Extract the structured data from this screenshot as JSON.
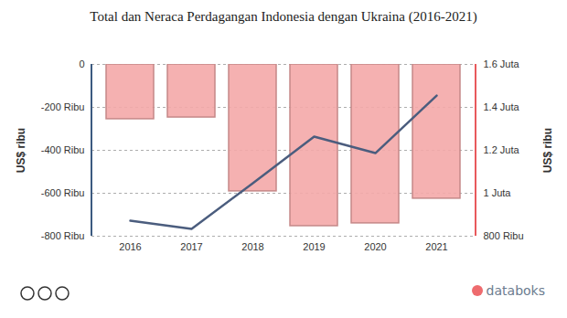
{
  "chart_data": {
    "type": "bar",
    "title": "Total dan Neraca Perdagangan Indonesia dengan Ukraina (2016-2021)",
    "categories": [
      "2016",
      "2017",
      "2018",
      "2019",
      "2020",
      "2021"
    ],
    "series": [
      {
        "type": "bar",
        "color": "#f4a9a8",
        "values": [
          -255,
          -247,
          -591,
          -753,
          -740,
          -625
        ]
      },
      {
        "type": "line",
        "color": "#4b5d7e",
        "axis": "y2",
        "values": [
          872,
          834,
          1047,
          1264,
          1187,
          1455
        ]
      }
    ],
    "ylim": [
      -800,
      0
    ],
    "yticks": [
      {
        "value": -800,
        "label": "-800 Ribu"
      },
      {
        "value": -600,
        "label": "-600 Ribu"
      },
      {
        "value": -400,
        "label": "-400 Ribu"
      },
      {
        "value": -200,
        "label": "-200 Ribu"
      },
      0
    ],
    "y2lim": [
      800,
      1600
    ],
    "y2ticks": [
      {
        "value": 800,
        "label": "800 Ribu"
      },
      {
        "value": 1000,
        "label": "1 Juta"
      },
      {
        "value": 1200,
        "label": "1.2 Juta"
      },
      {
        "value": 1400,
        "label": "1.4 Juta"
      },
      {
        "value": 1600,
        "label": "1.6 Juta"
      }
    ],
    "ylabel": "US$ ribu",
    "y2label": "US$ ribu",
    "grid": true,
    "credit": "databoks"
  }
}
